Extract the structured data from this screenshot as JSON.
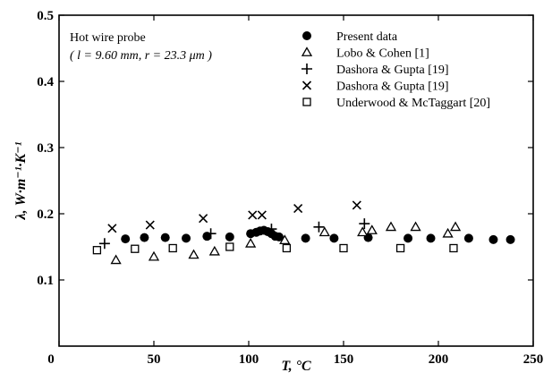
{
  "chart_data": {
    "type": "scatter",
    "xlabel": "T, °C",
    "ylabel": "λ, W·m⁻¹·K⁻¹",
    "xlim": [
      0,
      250
    ],
    "ylim": [
      0,
      0.5
    ],
    "x_ticks": [
      0,
      50,
      100,
      150,
      200,
      250
    ],
    "y_ticks": [
      0.1,
      0.2,
      0.3,
      0.4,
      0.5
    ],
    "x_tick_labels": [
      "0",
      "50",
      "100",
      "150",
      "200",
      "250"
    ],
    "y_tick_labels": [
      "0.1",
      "0.2",
      "0.3",
      "0.4",
      "0.5"
    ],
    "annotation": {
      "line1": "Hot wire probe",
      "line2": "( l = 9.60 mm, r = 23.3 μm )"
    },
    "legend_position": "top-right",
    "grid": false,
    "series": [
      {
        "name": "Present data",
        "marker": "filled-circle",
        "points": [
          [
            35,
            0.162
          ],
          [
            45,
            0.164
          ],
          [
            56,
            0.164
          ],
          [
            67,
            0.163
          ],
          [
            78,
            0.166
          ],
          [
            90,
            0.165
          ],
          [
            101,
            0.17
          ],
          [
            104,
            0.172
          ],
          [
            106,
            0.174
          ],
          [
            108,
            0.175
          ],
          [
            110,
            0.173
          ],
          [
            112,
            0.17
          ],
          [
            114,
            0.166
          ],
          [
            116,
            0.165
          ],
          [
            130,
            0.163
          ],
          [
            145,
            0.163
          ],
          [
            163,
            0.164
          ],
          [
            184,
            0.163
          ],
          [
            196,
            0.163
          ],
          [
            216,
            0.163
          ],
          [
            229,
            0.161
          ],
          [
            238,
            0.161
          ]
        ]
      },
      {
        "name": "Lobo & Cohen [1]",
        "marker": "open-triangle",
        "points": [
          [
            30,
            0.13
          ],
          [
            50,
            0.135
          ],
          [
            71,
            0.138
          ],
          [
            82,
            0.143
          ],
          [
            101,
            0.155
          ],
          [
            119,
            0.16
          ],
          [
            140,
            0.172
          ],
          [
            160,
            0.172
          ],
          [
            165,
            0.175
          ],
          [
            175,
            0.18
          ],
          [
            188,
            0.18
          ],
          [
            205,
            0.17
          ],
          [
            209,
            0.18
          ]
        ]
      },
      {
        "name": "Dashora & Gupta [19]",
        "marker": "plus",
        "points": [
          [
            24,
            0.155
          ],
          [
            80,
            0.17
          ],
          [
            112,
            0.177
          ],
          [
            137,
            0.18
          ],
          [
            161,
            0.185
          ]
        ]
      },
      {
        "name": "Dashora & Gupta [19]",
        "marker": "cross",
        "points": [
          [
            28,
            0.178
          ],
          [
            48,
            0.183
          ],
          [
            76,
            0.193
          ],
          [
            102,
            0.198
          ],
          [
            107,
            0.198
          ],
          [
            126,
            0.208
          ],
          [
            157,
            0.213
          ]
        ]
      },
      {
        "name": "Underwood & McTaggart [20]",
        "marker": "open-square",
        "points": [
          [
            20,
            0.145
          ],
          [
            40,
            0.147
          ],
          [
            60,
            0.148
          ],
          [
            90,
            0.15
          ],
          [
            120,
            0.148
          ],
          [
            150,
            0.148
          ],
          [
            180,
            0.148
          ],
          [
            208,
            0.148
          ]
        ]
      }
    ]
  }
}
